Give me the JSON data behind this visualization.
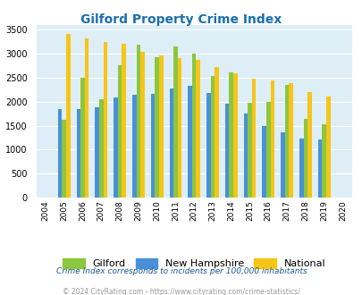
{
  "title": "Gilford Property Crime Index",
  "years": [
    2004,
    2005,
    2006,
    2007,
    2008,
    2009,
    2010,
    2011,
    2012,
    2013,
    2014,
    2015,
    2016,
    2017,
    2018,
    2019,
    2020
  ],
  "gilford": [
    0,
    1620,
    2500,
    2060,
    2760,
    3190,
    2930,
    3160,
    3000,
    2540,
    2620,
    1980,
    1990,
    2350,
    1640,
    1530,
    0
  ],
  "new_hampshire": [
    0,
    1850,
    1850,
    1890,
    2090,
    2140,
    2170,
    2280,
    2340,
    2180,
    1960,
    1750,
    1490,
    1360,
    1230,
    1210,
    0
  ],
  "national": [
    0,
    3420,
    3330,
    3250,
    3210,
    3040,
    2960,
    2920,
    2870,
    2730,
    2590,
    2490,
    2450,
    2380,
    2200,
    2110,
    0
  ],
  "gilford_color": "#8dc63f",
  "nh_color": "#4a90d9",
  "national_color": "#f5c518",
  "bg_color": "#ddeef6",
  "ylim": [
    0,
    3600
  ],
  "yticks": [
    0,
    500,
    1000,
    1500,
    2000,
    2500,
    3000,
    3500
  ],
  "subtitle": "Crime Index corresponds to incidents per 100,000 inhabitants",
  "footer": "© 2024 CityRating.com - https://www.cityrating.com/crime-statistics/",
  "title_color": "#1a6fae",
  "subtitle_color": "#1a5a9a",
  "footer_color": "#999999"
}
